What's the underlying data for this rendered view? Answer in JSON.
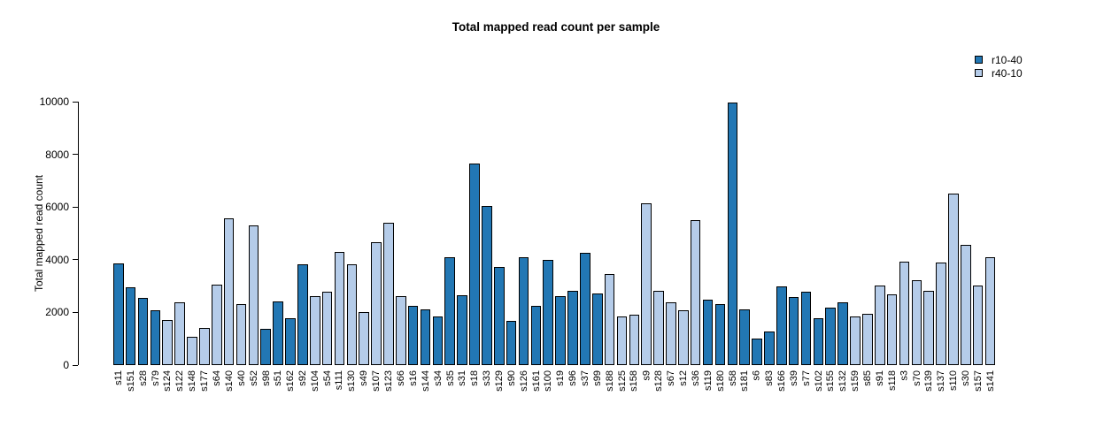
{
  "chart_data": {
    "type": "bar",
    "title": "Total mapped read count per sample",
    "xlabel": "",
    "ylabel": "Total mapped read count",
    "ylim": [
      0,
      10000
    ],
    "yticks": [
      0,
      2000,
      4000,
      6000,
      8000,
      10000
    ],
    "grid": false,
    "legend_position": "top-right",
    "series": [
      {
        "name": "r10-40",
        "color": "#2277b4"
      },
      {
        "name": "r40-10",
        "color": "#b5cce9"
      }
    ],
    "bars": [
      {
        "sample": "s11",
        "value": 3870,
        "series": "r10-40"
      },
      {
        "sample": "s151",
        "value": 2960,
        "series": "r10-40"
      },
      {
        "sample": "s28",
        "value": 2560,
        "series": "r10-40"
      },
      {
        "sample": "s79",
        "value": 2090,
        "series": "r10-40"
      },
      {
        "sample": "s124",
        "value": 1720,
        "series": "r40-10"
      },
      {
        "sample": "s122",
        "value": 2370,
        "series": "r40-10"
      },
      {
        "sample": "s148",
        "value": 1090,
        "series": "r40-10"
      },
      {
        "sample": "s177",
        "value": 1420,
        "series": "r40-10"
      },
      {
        "sample": "s64",
        "value": 3070,
        "series": "r40-10"
      },
      {
        "sample": "s140",
        "value": 5560,
        "series": "r40-10"
      },
      {
        "sample": "s40",
        "value": 2320,
        "series": "r40-10"
      },
      {
        "sample": "s52",
        "value": 5310,
        "series": "r40-10"
      },
      {
        "sample": "s98",
        "value": 1360,
        "series": "r10-40"
      },
      {
        "sample": "s51",
        "value": 2420,
        "series": "r10-40"
      },
      {
        "sample": "s162",
        "value": 1790,
        "series": "r10-40"
      },
      {
        "sample": "s92",
        "value": 3840,
        "series": "r10-40"
      },
      {
        "sample": "s104",
        "value": 2620,
        "series": "r40-10"
      },
      {
        "sample": "s54",
        "value": 2790,
        "series": "r40-10"
      },
      {
        "sample": "s111",
        "value": 4300,
        "series": "r40-10"
      },
      {
        "sample": "s130",
        "value": 3810,
        "series": "r40-10"
      },
      {
        "sample": "s49",
        "value": 2010,
        "series": "r40-10"
      },
      {
        "sample": "s107",
        "value": 4650,
        "series": "r40-10"
      },
      {
        "sample": "s123",
        "value": 5390,
        "series": "r40-10"
      },
      {
        "sample": "s66",
        "value": 2620,
        "series": "r40-10"
      },
      {
        "sample": "s16",
        "value": 2260,
        "series": "r10-40"
      },
      {
        "sample": "s144",
        "value": 2110,
        "series": "r10-40"
      },
      {
        "sample": "s34",
        "value": 1840,
        "series": "r10-40"
      },
      {
        "sample": "s35",
        "value": 4080,
        "series": "r10-40"
      },
      {
        "sample": "s31",
        "value": 2660,
        "series": "r10-40"
      },
      {
        "sample": "s18",
        "value": 7650,
        "series": "r10-40"
      },
      {
        "sample": "s33",
        "value": 6030,
        "series": "r10-40"
      },
      {
        "sample": "s129",
        "value": 3710,
        "series": "r10-40"
      },
      {
        "sample": "s90",
        "value": 1690,
        "series": "r10-40"
      },
      {
        "sample": "s126",
        "value": 4100,
        "series": "r10-40"
      },
      {
        "sample": "s161",
        "value": 2250,
        "series": "r10-40"
      },
      {
        "sample": "s100",
        "value": 4000,
        "series": "r10-40"
      },
      {
        "sample": "s19",
        "value": 2610,
        "series": "r10-40"
      },
      {
        "sample": "s96",
        "value": 2820,
        "series": "r10-40"
      },
      {
        "sample": "s37",
        "value": 4260,
        "series": "r10-40"
      },
      {
        "sample": "s99",
        "value": 2720,
        "series": "r10-40"
      },
      {
        "sample": "s188",
        "value": 3440,
        "series": "r40-10"
      },
      {
        "sample": "s125",
        "value": 1840,
        "series": "r40-10"
      },
      {
        "sample": "s158",
        "value": 1900,
        "series": "r40-10"
      },
      {
        "sample": "s9",
        "value": 6150,
        "series": "r40-10"
      },
      {
        "sample": "s128",
        "value": 2830,
        "series": "r40-10"
      },
      {
        "sample": "s67",
        "value": 2370,
        "series": "r40-10"
      },
      {
        "sample": "s12",
        "value": 2090,
        "series": "r40-10"
      },
      {
        "sample": "s36",
        "value": 5490,
        "series": "r40-10"
      },
      {
        "sample": "s119",
        "value": 2470,
        "series": "r10-40"
      },
      {
        "sample": "s180",
        "value": 2330,
        "series": "r10-40"
      },
      {
        "sample": "s58",
        "value": 9950,
        "series": "r10-40"
      },
      {
        "sample": "s181",
        "value": 2130,
        "series": "r10-40"
      },
      {
        "sample": "s6",
        "value": 1000,
        "series": "r10-40"
      },
      {
        "sample": "s83",
        "value": 1260,
        "series": "r10-40"
      },
      {
        "sample": "s166",
        "value": 2970,
        "series": "r10-40"
      },
      {
        "sample": "s39",
        "value": 2590,
        "series": "r10-40"
      },
      {
        "sample": "s77",
        "value": 2780,
        "series": "r10-40"
      },
      {
        "sample": "s102",
        "value": 1780,
        "series": "r10-40"
      },
      {
        "sample": "s155",
        "value": 2170,
        "series": "r10-40"
      },
      {
        "sample": "s132",
        "value": 2390,
        "series": "r10-40"
      },
      {
        "sample": "s159",
        "value": 1830,
        "series": "r40-10"
      },
      {
        "sample": "s85",
        "value": 1940,
        "series": "r40-10"
      },
      {
        "sample": "s91",
        "value": 3030,
        "series": "r40-10"
      },
      {
        "sample": "s118",
        "value": 2700,
        "series": "r40-10"
      },
      {
        "sample": "s3",
        "value": 3920,
        "series": "r40-10"
      },
      {
        "sample": "s70",
        "value": 3230,
        "series": "r40-10"
      },
      {
        "sample": "s139",
        "value": 2810,
        "series": "r40-10"
      },
      {
        "sample": "s137",
        "value": 3890,
        "series": "r40-10"
      },
      {
        "sample": "s110",
        "value": 6500,
        "series": "r40-10"
      },
      {
        "sample": "s30",
        "value": 4550,
        "series": "r40-10"
      },
      {
        "sample": "s157",
        "value": 3030,
        "series": "r40-10"
      },
      {
        "sample": "s141",
        "value": 4110,
        "series": "r40-10"
      }
    ]
  }
}
